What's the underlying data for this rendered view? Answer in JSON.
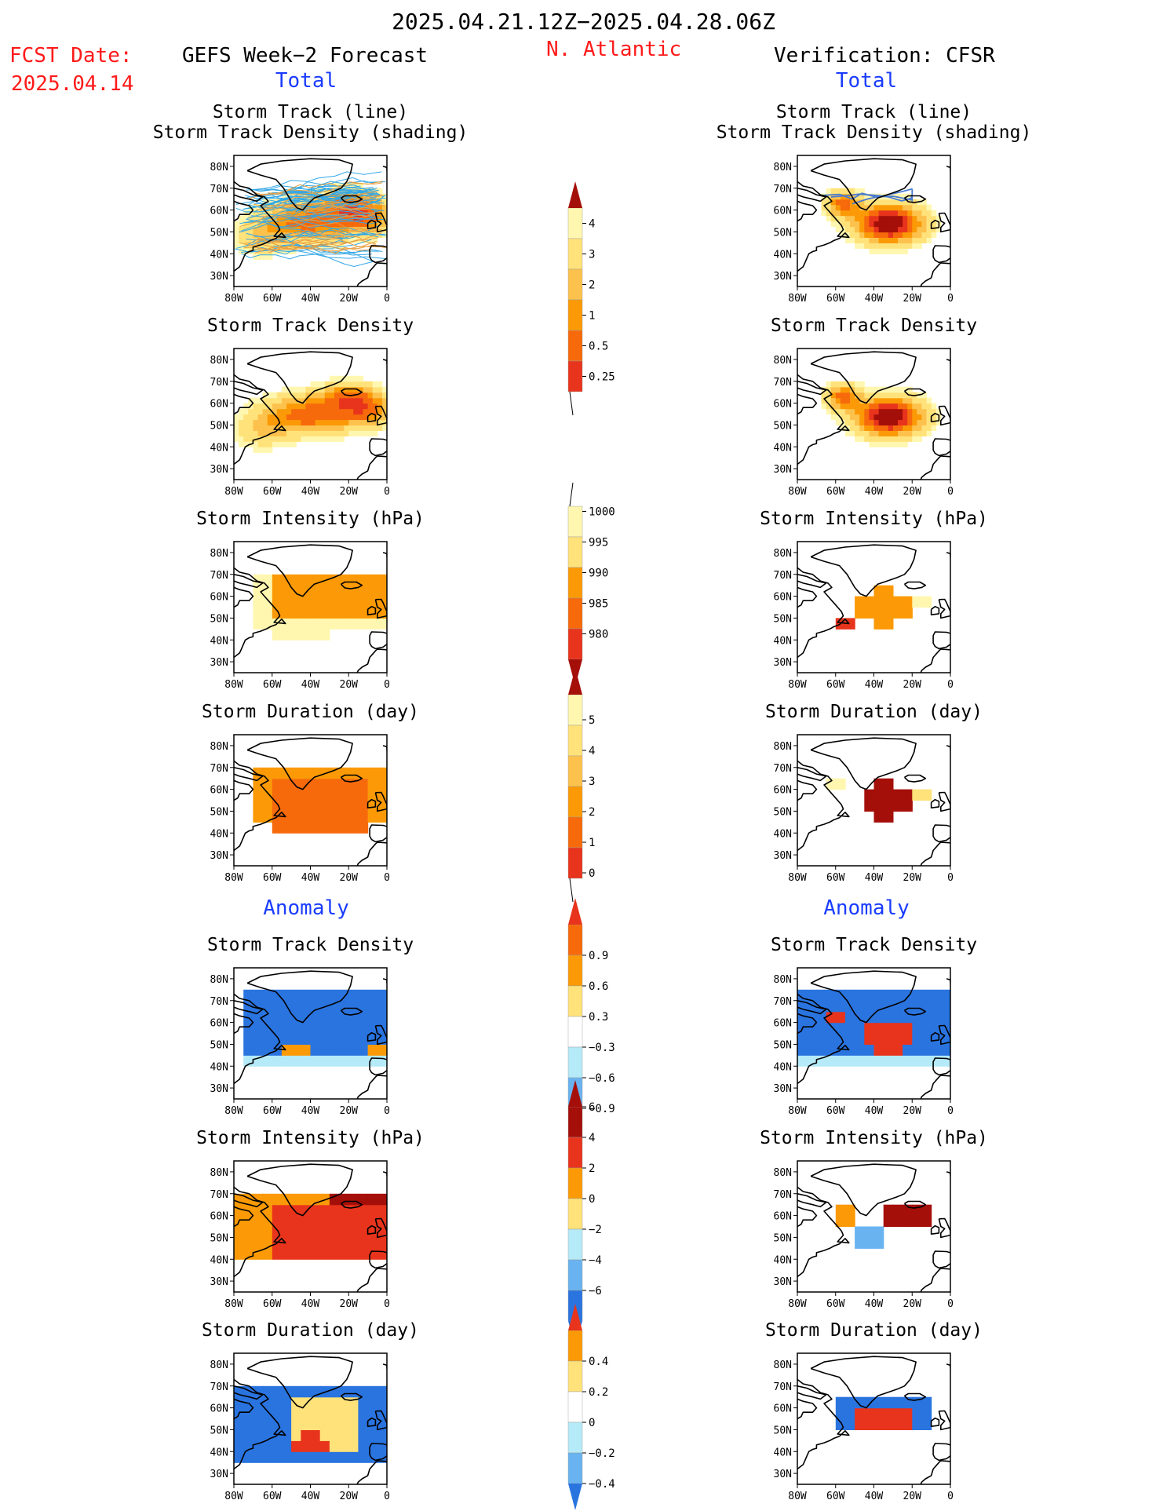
{
  "header": {
    "title": "2025.04.21.12Z−2025.04.28.06Z",
    "fcst_label": "FCST Date:",
    "fcst_date": "2025.04.14",
    "left_title": "GEFS Week−2 Forecast",
    "region": "N. Atlantic",
    "right_title": "Verification: CFSR",
    "left_section": "Total",
    "right_section": "Total",
    "anomaly_left": "Anomaly",
    "anomaly_right": "Anomaly"
  },
  "colors": {
    "title_red": "#ff1a1a",
    "section_blue": "#1a3cff",
    "pale_yellow": "#fff7b0",
    "light_yellow": "#ffe27a",
    "light_orange": "#fdc24d",
    "orange": "#fb9a06",
    "dark_orange": "#f76a0c",
    "red": "#e8341c",
    "dark_red": "#a50f0a",
    "light_blue": "#b5eaf8",
    "mid_blue": "#68b3f0",
    "blue": "#2a74e0",
    "track_line": "#33a7e6",
    "track_line_cfsr": "#4a7bd0"
  },
  "colorbars": [
    {
      "id": "density_total",
      "labels": [
        "0.25",
        "0.5",
        "1",
        "2",
        "3",
        "4"
      ]
    },
    {
      "id": "intensity_total",
      "labels": [
        "1000",
        "995",
        "990",
        "985",
        "980"
      ]
    },
    {
      "id": "duration_total",
      "labels": [
        "0",
        "1",
        "2",
        "3",
        "4",
        "5"
      ]
    },
    {
      "id": "density_anom",
      "labels": [
        "0.9",
        "0.6",
        "0.3",
        "−0.3",
        "−0.6",
        "−0.9"
      ]
    },
    {
      "id": "intensity_anom",
      "labels": [
        "6",
        "4",
        "2",
        "0",
        "−2",
        "−4",
        "−6"
      ]
    },
    {
      "id": "duration_anom",
      "labels": [
        "0.4",
        "0.2",
        "0",
        "−0.2",
        "−0.4"
      ]
    }
  ],
  "chart_data": [
    {
      "type": "heatmap",
      "panel": "GEFS Total",
      "title": "Storm Track (line)",
      "subtitle": "Storm Track Density (shading)",
      "x_ticks": [
        "80W",
        "60W",
        "40W",
        "20W",
        "0"
      ],
      "y_ticks": [
        "80N",
        "70N",
        "60N",
        "50N",
        "40N",
        "30N"
      ],
      "xlim": [
        -80,
        0
      ],
      "ylim": [
        25,
        85
      ]
    },
    {
      "type": "heatmap",
      "panel": "GEFS Total",
      "title": "Storm Track Density",
      "x_ticks": [
        "80W",
        "60W",
        "40W",
        "20W",
        "0"
      ],
      "y_ticks": [
        "80N",
        "70N",
        "60N",
        "50N",
        "40N",
        "30N"
      ],
      "xlim": [
        -80,
        0
      ],
      "ylim": [
        25,
        85
      ]
    },
    {
      "type": "heatmap",
      "panel": "GEFS Total",
      "title": "Storm Intensity (hPa)",
      "x_ticks": [
        "80W",
        "60W",
        "40W",
        "20W",
        "0"
      ],
      "y_ticks": [
        "80N",
        "70N",
        "60N",
        "50N",
        "40N",
        "30N"
      ],
      "xlim": [
        -80,
        0
      ],
      "ylim": [
        25,
        85
      ]
    },
    {
      "type": "heatmap",
      "panel": "GEFS Total",
      "title": "Storm Duration (day)",
      "x_ticks": [
        "80W",
        "60W",
        "40W",
        "20W",
        "0"
      ],
      "y_ticks": [
        "80N",
        "70N",
        "60N",
        "50N",
        "40N",
        "30N"
      ],
      "xlim": [
        -80,
        0
      ],
      "ylim": [
        25,
        85
      ]
    },
    {
      "type": "heatmap",
      "panel": "GEFS Anomaly",
      "title": "Storm Track Density",
      "x_ticks": [
        "80W",
        "60W",
        "40W",
        "20W",
        "0"
      ],
      "y_ticks": [
        "80N",
        "70N",
        "60N",
        "50N",
        "40N",
        "30N"
      ],
      "xlim": [
        -80,
        0
      ],
      "ylim": [
        25,
        85
      ]
    },
    {
      "type": "heatmap",
      "panel": "GEFS Anomaly",
      "title": "Storm Intensity (hPa)",
      "x_ticks": [
        "80W",
        "60W",
        "40W",
        "20W",
        "0"
      ],
      "y_ticks": [
        "80N",
        "70N",
        "60N",
        "50N",
        "40N",
        "30N"
      ],
      "xlim": [
        -80,
        0
      ],
      "ylim": [
        25,
        85
      ]
    },
    {
      "type": "heatmap",
      "panel": "GEFS Anomaly",
      "title": "Storm Duration (day)",
      "x_ticks": [
        "80W",
        "60W",
        "40W",
        "20W",
        "0"
      ],
      "y_ticks": [
        "80N",
        "70N",
        "60N",
        "50N",
        "40N",
        "30N"
      ],
      "xlim": [
        -80,
        0
      ],
      "ylim": [
        25,
        85
      ]
    },
    {
      "type": "heatmap",
      "panel": "CFSR Total",
      "title": "Storm Track (line)",
      "subtitle": "Storm Track Density (shading)",
      "x_ticks": [
        "80W",
        "60W",
        "40W",
        "20W",
        "0"
      ],
      "y_ticks": [
        "80N",
        "70N",
        "60N",
        "50N",
        "40N",
        "30N"
      ],
      "xlim": [
        -80,
        0
      ],
      "ylim": [
        25,
        85
      ]
    },
    {
      "type": "heatmap",
      "panel": "CFSR Total",
      "title": "Storm Track Density",
      "x_ticks": [
        "80W",
        "60W",
        "40W",
        "20W",
        "0"
      ],
      "y_ticks": [
        "80N",
        "70N",
        "60N",
        "50N",
        "40N",
        "30N"
      ],
      "xlim": [
        -80,
        0
      ],
      "ylim": [
        25,
        85
      ]
    },
    {
      "type": "heatmap",
      "panel": "CFSR Total",
      "title": "Storm Intensity (hPa)",
      "x_ticks": [
        "80W",
        "60W",
        "40W",
        "20W",
        "0"
      ],
      "y_ticks": [
        "80N",
        "70N",
        "60N",
        "50N",
        "40N",
        "30N"
      ],
      "xlim": [
        -80,
        0
      ],
      "ylim": [
        25,
        85
      ]
    },
    {
      "type": "heatmap",
      "panel": "CFSR Total",
      "title": "Storm Duration (day)",
      "x_ticks": [
        "80W",
        "60W",
        "40W",
        "20W",
        "0"
      ],
      "y_ticks": [
        "80N",
        "70N",
        "60N",
        "50N",
        "40N",
        "30N"
      ],
      "xlim": [
        -80,
        0
      ],
      "ylim": [
        25,
        85
      ]
    },
    {
      "type": "heatmap",
      "panel": "CFSR Anomaly",
      "title": "Storm Track Density",
      "x_ticks": [
        "80W",
        "60W",
        "40W",
        "20W",
        "0"
      ],
      "y_ticks": [
        "80N",
        "70N",
        "60N",
        "50N",
        "40N",
        "30N"
      ],
      "xlim": [
        -80,
        0
      ],
      "ylim": [
        25,
        85
      ]
    },
    {
      "type": "heatmap",
      "panel": "CFSR Anomaly",
      "title": "Storm Intensity (hPa)",
      "x_ticks": [
        "80W",
        "60W",
        "40W",
        "20W",
        "0"
      ],
      "y_ticks": [
        "80N",
        "70N",
        "60N",
        "50N",
        "40N",
        "30N"
      ],
      "xlim": [
        -80,
        0
      ],
      "ylim": [
        25,
        85
      ]
    },
    {
      "type": "heatmap",
      "panel": "CFSR Anomaly",
      "title": "Storm Duration (day)",
      "x_ticks": [
        "80W",
        "60W",
        "40W",
        "20W",
        "0"
      ],
      "y_ticks": [
        "80N",
        "70N",
        "60N",
        "50N",
        "40N",
        "30N"
      ],
      "xlim": [
        -80,
        0
      ],
      "ylim": [
        25,
        85
      ]
    }
  ]
}
